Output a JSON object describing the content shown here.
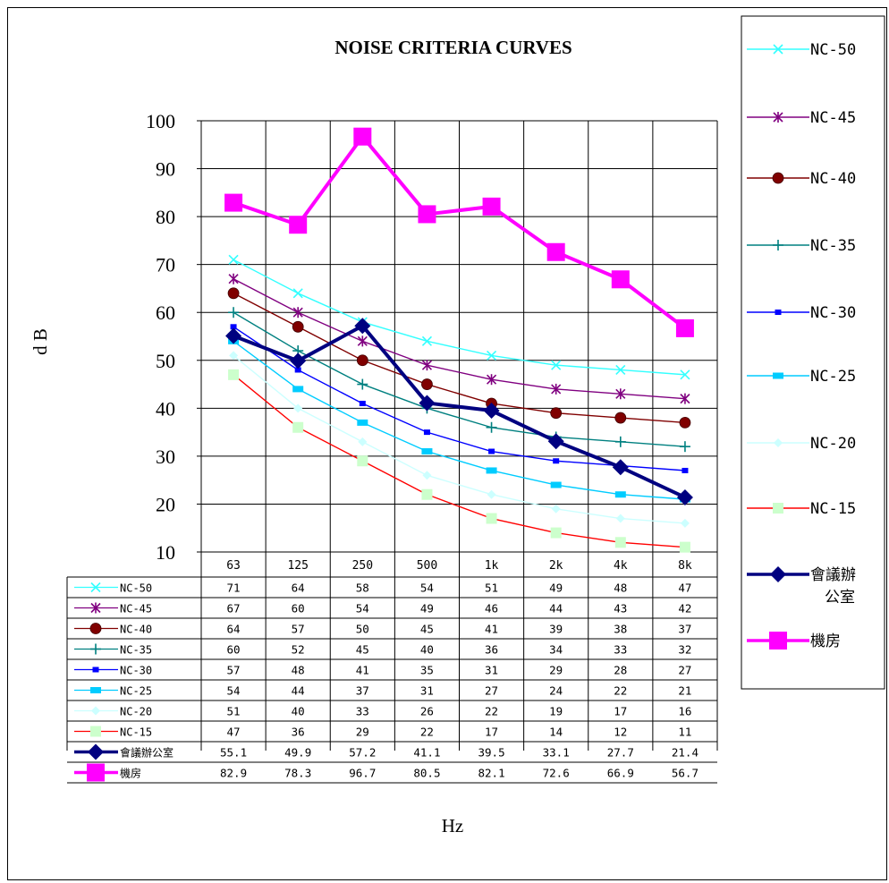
{
  "chart_data": {
    "type": "line",
    "title": "NOISE CRITERIA CURVES",
    "xlabel": "Hz",
    "ylabel": "d B",
    "ylim": [
      10,
      100
    ],
    "y_ticks": [
      "10",
      "20",
      "30",
      "40",
      "50",
      "60",
      "70",
      "80",
      "90",
      "100"
    ],
    "categories": [
      "63",
      "125",
      "250",
      "500",
      "1k",
      "2k",
      "4k",
      "8k"
    ],
    "grid": true,
    "legend_position": "right",
    "series": [
      {
        "name": "NC-50",
        "color": "#33ffff",
        "marker": "x",
        "values": [
          71,
          64,
          58,
          54,
          51,
          49,
          48,
          47
        ],
        "labels": [
          "71",
          "64",
          "58",
          "54",
          "51",
          "49",
          "48",
          "47"
        ]
      },
      {
        "name": "NC-45",
        "color": "#800080",
        "marker": "star",
        "values": [
          67,
          60,
          54,
          49,
          46,
          44,
          43,
          42
        ],
        "labels": [
          "67",
          "60",
          "54",
          "49",
          "46",
          "44",
          "43",
          "42"
        ]
      },
      {
        "name": "NC-40",
        "color": "#800000",
        "marker": "circle",
        "values": [
          64,
          57,
          50,
          45,
          41,
          39,
          38,
          37
        ],
        "labels": [
          "64",
          "57",
          "50",
          "45",
          "41",
          "39",
          "38",
          "37"
        ]
      },
      {
        "name": "NC-35",
        "color": "#008080",
        "marker": "plus",
        "values": [
          60,
          52,
          45,
          40,
          36,
          34,
          33,
          32
        ],
        "labels": [
          "60",
          "52",
          "45",
          "40",
          "36",
          "34",
          "33",
          "32"
        ]
      },
      {
        "name": "NC-30",
        "color": "#0000ff",
        "marker": "small-square",
        "values": [
          57,
          48,
          41,
          35,
          31,
          29,
          28,
          27
        ],
        "labels": [
          "57",
          "48",
          "41",
          "35",
          "31",
          "29",
          "28",
          "27"
        ]
      },
      {
        "name": "NC-25",
        "color": "#00ccff",
        "marker": "square",
        "values": [
          54,
          44,
          37,
          31,
          27,
          24,
          22,
          21
        ],
        "labels": [
          "54",
          "44",
          "37",
          "31",
          "27",
          "24",
          "22",
          "21"
        ]
      },
      {
        "name": "NC-20",
        "color": "#ccffff",
        "marker": "diamond",
        "values": [
          51,
          40,
          33,
          26,
          22,
          19,
          17,
          16
        ],
        "labels": [
          "51",
          "40",
          "33",
          "26",
          "22",
          "19",
          "17",
          "16"
        ]
      },
      {
        "name": "NC-15",
        "color": "#ff0000",
        "marker": "pale-square",
        "marker_color": "#ccffcc",
        "values": [
          47,
          36,
          29,
          22,
          17,
          14,
          12,
          11
        ],
        "labels": [
          "47",
          "36",
          "29",
          "22",
          "17",
          "14",
          "12",
          "11"
        ]
      },
      {
        "name": "會議辦公室",
        "legend_lines": [
          "會議辦",
          "公室"
        ],
        "color": "#000080",
        "marker": "big-diamond",
        "thick": true,
        "values": [
          55.1,
          49.9,
          57.2,
          41.1,
          39.5,
          33.1,
          27.7,
          21.4
        ],
        "labels": [
          "55.1",
          "49.9",
          "57.2",
          "41.1",
          "39.5",
          "33.1",
          "27.7",
          "21.4"
        ]
      },
      {
        "name": "機房",
        "color": "#ff00ff",
        "marker": "big-square",
        "thick": true,
        "values": [
          82.9,
          78.3,
          96.7,
          80.5,
          82.1,
          72.6,
          66.9,
          56.7
        ],
        "labels": [
          "82.9",
          "78.3",
          "96.7",
          "80.5",
          "82.1",
          "72.6",
          "66.9",
          "56.7"
        ]
      }
    ]
  }
}
